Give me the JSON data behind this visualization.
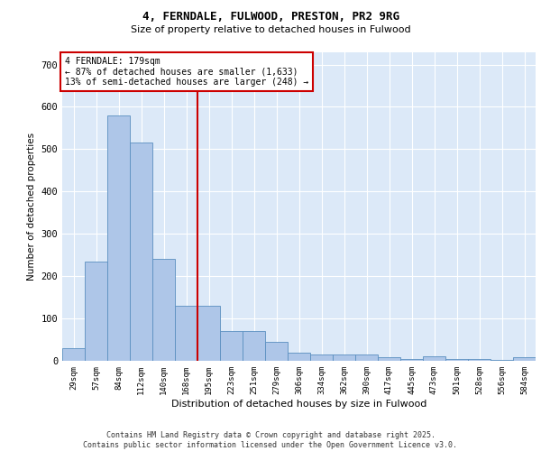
{
  "title1": "4, FERNDALE, FULWOOD, PRESTON, PR2 9RG",
  "title2": "Size of property relative to detached houses in Fulwood",
  "xlabel": "Distribution of detached houses by size in Fulwood",
  "ylabel": "Number of detached properties",
  "categories": [
    "29sqm",
    "57sqm",
    "84sqm",
    "112sqm",
    "140sqm",
    "168sqm",
    "195sqm",
    "223sqm",
    "251sqm",
    "279sqm",
    "306sqm",
    "334sqm",
    "362sqm",
    "390sqm",
    "417sqm",
    "445sqm",
    "473sqm",
    "501sqm",
    "528sqm",
    "556sqm",
    "584sqm"
  ],
  "values": [
    30,
    235,
    580,
    515,
    240,
    130,
    130,
    70,
    70,
    45,
    20,
    15,
    15,
    15,
    8,
    5,
    10,
    5,
    5,
    2,
    8
  ],
  "bar_color": "#aec6e8",
  "bar_edge_color": "#5a8fc0",
  "vline_color": "#cc0000",
  "vline_pos": 5.5,
  "annotation_text": "4 FERNDALE: 179sqm\n← 87% of detached houses are smaller (1,633)\n13% of semi-detached houses are larger (248) →",
  "annotation_box_color": "#cc0000",
  "ylim": [
    0,
    730
  ],
  "yticks": [
    0,
    100,
    200,
    300,
    400,
    500,
    600,
    700
  ],
  "background_color": "#dce9f8",
  "grid_color": "#ffffff",
  "footer1": "Contains HM Land Registry data © Crown copyright and database right 2025.",
  "footer2": "Contains public sector information licensed under the Open Government Licence v3.0."
}
